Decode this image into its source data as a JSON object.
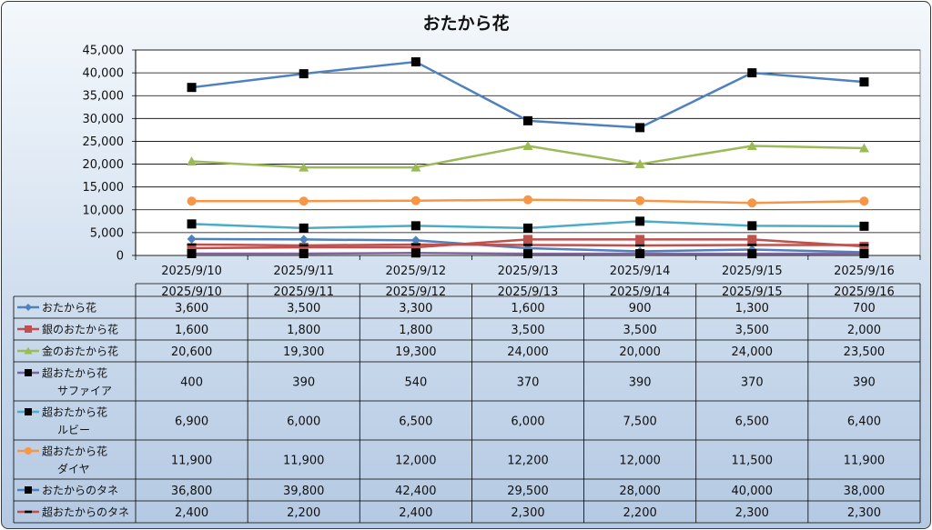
{
  "chart_data": {
    "type": "line",
    "title": "おたから花",
    "xlabel": "",
    "ylabel": "",
    "categories": [
      "2025/9/10",
      "2025/9/11",
      "2025/9/12",
      "2025/9/13",
      "2025/9/14",
      "2025/9/15",
      "2025/9/16"
    ],
    "ylim": [
      0,
      45000
    ],
    "yticks": [
      0,
      5000,
      10000,
      15000,
      20000,
      25000,
      30000,
      35000,
      40000,
      45000
    ],
    "ytick_labels": [
      "0",
      "5,000",
      "10,000",
      "15,000",
      "20,000",
      "25,000",
      "30,000",
      "35,000",
      "40,000",
      "45,000"
    ],
    "grid": true,
    "legend": "data-table",
    "series": [
      {
        "name": "おたから花",
        "label_lines": [
          "おたから花"
        ],
        "color": "#4f81bd",
        "marker": "diamond",
        "values": [
          3600,
          3500,
          3300,
          1600,
          900,
          1300,
          700
        ],
        "labels": [
          "3,600",
          "3,500",
          "3,300",
          "1,600",
          "900",
          "1,300",
          "700"
        ]
      },
      {
        "name": "銀のおたから花",
        "label_lines": [
          "銀のおたから花"
        ],
        "color": "#c0504d",
        "marker": "square",
        "values": [
          1600,
          1800,
          1800,
          3500,
          3500,
          3500,
          2000
        ],
        "labels": [
          "1,600",
          "1,800",
          "1,800",
          "3,500",
          "3,500",
          "3,500",
          "2,000"
        ]
      },
      {
        "name": "金のおたから花",
        "label_lines": [
          "金のおたから花"
        ],
        "color": "#9bbb59",
        "marker": "triangle",
        "values": [
          20600,
          19300,
          19300,
          24000,
          20000,
          24000,
          23500
        ],
        "labels": [
          "20,600",
          "19,300",
          "19,300",
          "24,000",
          "20,000",
          "24,000",
          "23,500"
        ]
      },
      {
        "name": "超おたから花 サファイア",
        "label_lines": [
          "超おたから花",
          "サファイア"
        ],
        "color": "#8064a2",
        "marker": "square-black",
        "values": [
          400,
          390,
          540,
          370,
          390,
          370,
          390
        ],
        "labels": [
          "400",
          "390",
          "540",
          "370",
          "390",
          "370",
          "390"
        ]
      },
      {
        "name": "超おたから花 ルビー",
        "label_lines": [
          "超おたから花",
          "ルビー"
        ],
        "color": "#4bacc6",
        "marker": "square-black",
        "values": [
          6900,
          6000,
          6500,
          6000,
          7500,
          6500,
          6400
        ],
        "labels": [
          "6,900",
          "6,000",
          "6,500",
          "6,000",
          "7,500",
          "6,500",
          "6,400"
        ]
      },
      {
        "name": "超おたから花 ダイヤ",
        "label_lines": [
          "超おたから花",
          "ダイヤ"
        ],
        "color": "#f79646",
        "marker": "circle",
        "values": [
          11900,
          11900,
          12000,
          12200,
          12000,
          11500,
          11900
        ],
        "labels": [
          "11,900",
          "11,900",
          "12,000",
          "12,200",
          "12,000",
          "11,500",
          "11,900"
        ]
      },
      {
        "name": "おたからのタネ",
        "label_lines": [
          "おたからのタネ"
        ],
        "color": "#4f81bd",
        "marker": "square-black",
        "values": [
          36800,
          39800,
          42400,
          29500,
          28000,
          40000,
          38000
        ],
        "labels": [
          "36,800",
          "39,800",
          "42,400",
          "29,500",
          "28,000",
          "40,000",
          "38,000"
        ]
      },
      {
        "name": "超おたからのタネ",
        "label_lines": [
          "超おたからのタネ"
        ],
        "color": "#c0504d",
        "marker": "dash-black",
        "values": [
          2400,
          2200,
          2400,
          2300,
          2200,
          2300,
          2300
        ],
        "labels": [
          "2,400",
          "2,200",
          "2,400",
          "2,300",
          "2,200",
          "2,300",
          "2,300"
        ]
      }
    ]
  }
}
